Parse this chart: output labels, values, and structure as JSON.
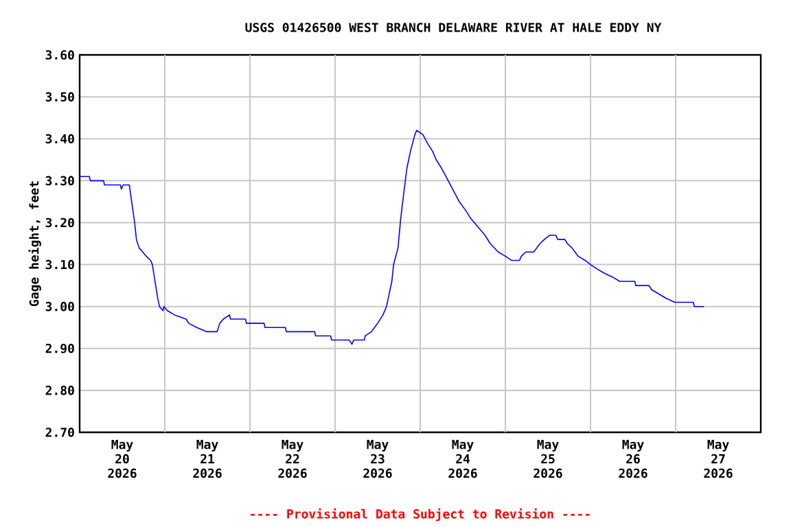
{
  "chart_data": {
    "type": "line",
    "title": "USGS 01426500 WEST BRANCH DELAWARE RIVER AT HALE EDDY NY",
    "ylabel": "Gage height, feet",
    "annotations": [
      "---- Provisional Data Subject to Revision ----"
    ],
    "x": [
      "2026-05-20T00:00",
      "2026-05-20T02:45",
      "2026-05-20T03:00",
      "2026-05-20T06:45",
      "2026-05-20T07:00",
      "2026-05-20T11:30",
      "2026-05-20T11:45",
      "2026-05-20T12:15",
      "2026-05-20T14:00",
      "2026-05-20T14:30",
      "2026-05-20T15:30",
      "2026-05-20T16:00",
      "2026-05-20T16:45",
      "2026-05-20T17:45",
      "2026-05-20T18:45",
      "2026-05-20T20:00",
      "2026-05-20T20:30",
      "2026-05-20T21:15",
      "2026-05-20T22:00",
      "2026-05-20T22:30",
      "2026-05-20T23:30",
      "2026-05-20T23:45",
      "2026-05-21T00:45",
      "2026-05-21T02:45",
      "2026-05-21T06:00",
      "2026-05-21T06:45",
      "2026-05-21T09:00",
      "2026-05-21T11:45",
      "2026-05-21T14:45",
      "2026-05-21T15:30",
      "2026-05-21T16:30",
      "2026-05-21T18:15",
      "2026-05-21T18:30",
      "2026-05-21T22:45",
      "2026-05-21T23:00",
      "2026-05-22T04:00",
      "2026-05-22T04:15",
      "2026-05-22T10:00",
      "2026-05-22T10:15",
      "2026-05-22T18:15",
      "2026-05-22T18:30",
      "2026-05-22T22:45",
      "2026-05-22T23:00",
      "2026-05-23T04:00",
      "2026-05-23T04:45",
      "2026-05-23T05:15",
      "2026-05-23T08:15",
      "2026-05-23T08:30",
      "2026-05-23T10:15",
      "2026-05-23T12:00",
      "2026-05-23T13:30",
      "2026-05-23T14:30",
      "2026-05-23T15:00",
      "2026-05-23T16:00",
      "2026-05-23T16:30",
      "2026-05-23T17:45",
      "2026-05-23T18:30",
      "2026-05-23T19:30",
      "2026-05-23T20:15",
      "2026-05-23T21:15",
      "2026-05-23T22:30",
      "2026-05-23T23:00",
      "2026-05-24T00:45",
      "2026-05-24T02:00",
      "2026-05-24T03:30",
      "2026-05-24T04:30",
      "2026-05-24T06:00",
      "2026-05-24T07:15",
      "2026-05-24T08:30",
      "2026-05-24T09:45",
      "2026-05-24T11:00",
      "2026-05-24T12:45",
      "2026-05-24T14:15",
      "2026-05-24T16:15",
      "2026-05-24T18:15",
      "2026-05-24T19:45",
      "2026-05-24T22:00",
      "2026-05-25T00:00",
      "2026-05-25T01:45",
      "2026-05-25T04:00",
      "2026-05-25T04:30",
      "2026-05-25T05:45",
      "2026-05-25T08:00",
      "2026-05-25T09:45",
      "2026-05-25T11:00",
      "2026-05-25T12:30",
      "2026-05-25T14:15",
      "2026-05-25T14:45",
      "2026-05-25T16:45",
      "2026-05-25T17:30",
      "2026-05-25T18:45",
      "2026-05-25T20:30",
      "2026-05-25T22:30",
      "2026-05-26T00:00",
      "2026-05-26T01:45",
      "2026-05-26T03:45",
      "2026-05-26T06:15",
      "2026-05-26T08:15",
      "2026-05-26T12:30",
      "2026-05-26T12:45",
      "2026-05-26T16:30",
      "2026-05-26T17:15",
      "2026-05-26T19:15",
      "2026-05-26T21:15",
      "2026-05-26T23:45",
      "2026-05-27T05:00",
      "2026-05-27T05:15",
      "2026-05-27T08:00"
    ],
    "series": [
      {
        "color": "#0000ff",
        "values": [
          3.31,
          3.31,
          3.3,
          3.3,
          3.29,
          3.29,
          3.28,
          3.29,
          3.29,
          3.26,
          3.2,
          3.16,
          3.14,
          3.13,
          3.12,
          3.11,
          3.1,
          3.06,
          3.02,
          3.0,
          2.99,
          3.0,
          2.99,
          2.98,
          2.97,
          2.96,
          2.95,
          2.94,
          2.94,
          2.96,
          2.97,
          2.98,
          2.97,
          2.97,
          2.96,
          2.96,
          2.95,
          2.95,
          2.94,
          2.94,
          2.93,
          2.93,
          2.92,
          2.92,
          2.91,
          2.92,
          2.92,
          2.93,
          2.94,
          2.96,
          2.98,
          3.0,
          3.02,
          3.06,
          3.1,
          3.14,
          3.21,
          3.28,
          3.33,
          3.37,
          3.41,
          3.42,
          3.41,
          3.39,
          3.37,
          3.35,
          3.33,
          3.31,
          3.29,
          3.27,
          3.25,
          3.23,
          3.21,
          3.19,
          3.17,
          3.15,
          3.13,
          3.12,
          3.11,
          3.11,
          3.12,
          3.13,
          3.13,
          3.15,
          3.16,
          3.17,
          3.17,
          3.16,
          3.16,
          3.15,
          3.14,
          3.12,
          3.11,
          3.1,
          3.09,
          3.08,
          3.07,
          3.06,
          3.06,
          3.05,
          3.05,
          3.04,
          3.03,
          3.02,
          3.01,
          3.01,
          3.0,
          3.0
        ]
      }
    ],
    "xlim": [
      "2026-05-20T00:00",
      "2026-05-28T00:00"
    ],
    "xticks": [
      {
        "value": "2026-05-20T12:00",
        "label": "May 20 2026"
      },
      {
        "value": "2026-05-21T12:00",
        "label": "May 21 2026"
      },
      {
        "value": "2026-05-22T12:00",
        "label": "May 22 2026"
      },
      {
        "value": "2026-05-23T12:00",
        "label": "May 23 2026"
      },
      {
        "value": "2026-05-24T12:00",
        "label": "May 24 2026"
      },
      {
        "value": "2026-05-25T12:00",
        "label": "May 25 2026"
      },
      {
        "value": "2026-05-26T12:00",
        "label": "May 26 2026"
      },
      {
        "value": "2026-05-27T12:00",
        "label": "May 27 2026"
      },
      {
        "value": "2026-05-21T00:00",
        "label": null
      },
      {
        "value": "2026-05-22T00:00",
        "label": null
      },
      {
        "value": "2026-05-23T00:00",
        "label": null
      },
      {
        "value": "2026-05-24T00:00",
        "label": null
      },
      {
        "value": "2026-05-25T00:00",
        "label": null
      },
      {
        "value": "2026-05-26T00:00",
        "label": null
      },
      {
        "value": "2026-05-27T00:00",
        "label": null
      }
    ],
    "ylim": [
      2.7,
      3.6
    ],
    "yticks": [
      {
        "value": 2.7,
        "label": "2.70"
      },
      {
        "value": 2.8,
        "label": "2.80"
      },
      {
        "value": 2.9,
        "label": "2.90"
      },
      {
        "value": 3.0,
        "label": "3.00"
      },
      {
        "value": 3.1,
        "label": "3.10"
      },
      {
        "value": 3.2,
        "label": "3.20"
      },
      {
        "value": 3.3,
        "label": "3.30"
      },
      {
        "value": 3.4,
        "label": "3.40"
      },
      {
        "value": 3.5,
        "label": "3.50"
      },
      {
        "value": 3.6,
        "label": "3.60"
      }
    ],
    "grid": true,
    "marker": "none",
    "line_style": "solid"
  }
}
